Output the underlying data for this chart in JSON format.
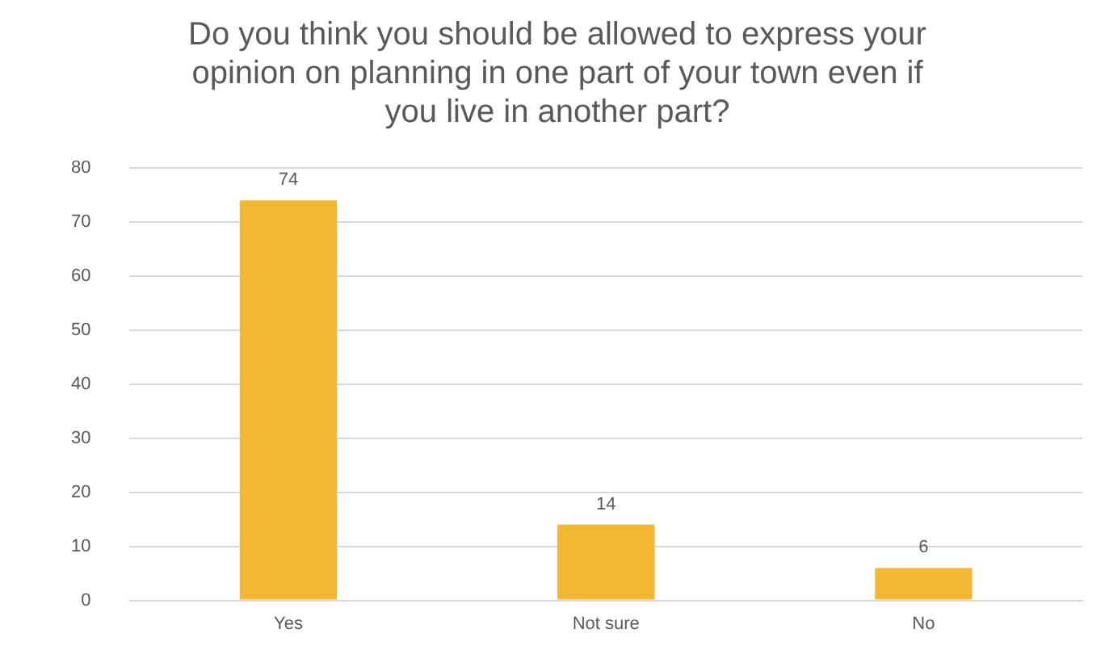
{
  "chart_data": {
    "type": "bar",
    "title": "Do you think you should be allowed to express your opinion on planning in one part of your town even if you live in another part?",
    "categories": [
      "Yes",
      "Not sure",
      "No"
    ],
    "values": [
      74,
      14,
      6
    ],
    "color": "#f4b731",
    "ylim": [
      0,
      80
    ],
    "yticks": [
      0,
      10,
      20,
      30,
      40,
      50,
      60,
      70,
      80
    ],
    "grid": "y",
    "data_labels": true,
    "legend": false
  }
}
